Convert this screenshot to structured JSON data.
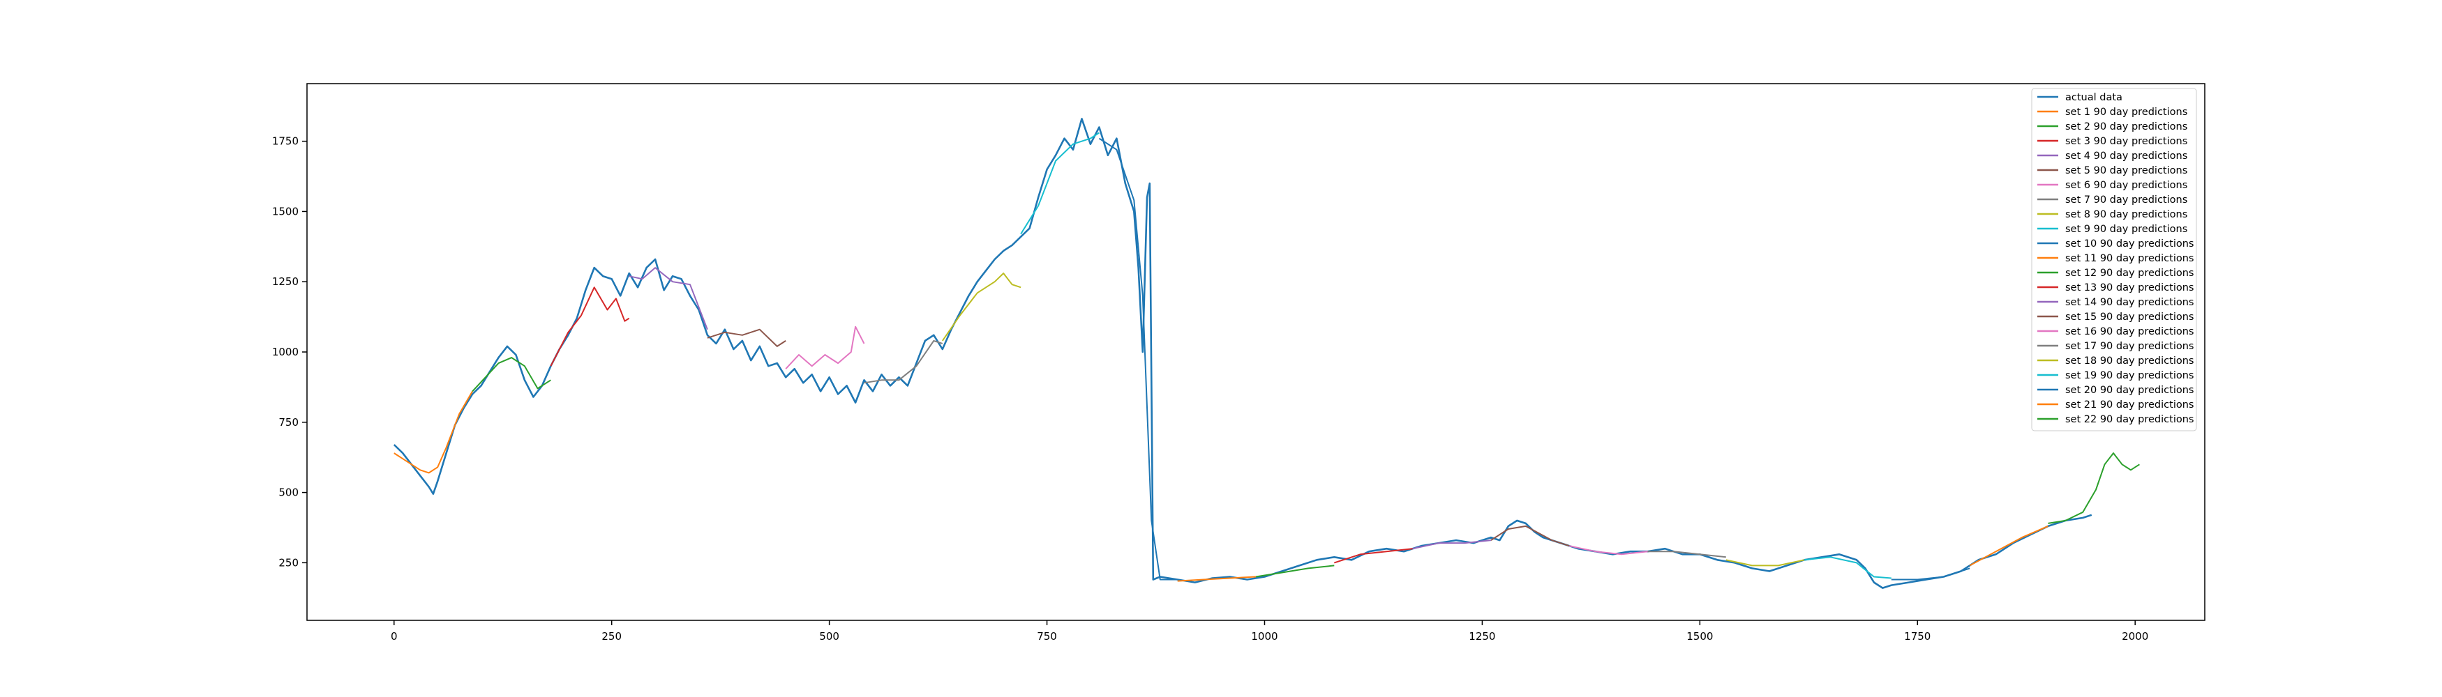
{
  "chart_data": {
    "type": "line",
    "title": "",
    "xlabel": "",
    "ylabel": "",
    "xlim": [
      -100,
      2080
    ],
    "ylim": [
      45,
      1955
    ],
    "x_ticks": [
      0,
      250,
      500,
      750,
      1000,
      1250,
      1500,
      1750,
      2000
    ],
    "y_ticks": [
      250,
      500,
      750,
      1000,
      1250,
      1500,
      1750
    ],
    "x_tick_labels": [
      "0",
      "250",
      "500",
      "750",
      "1000",
      "1250",
      "1500",
      "1750",
      "2000"
    ],
    "y_tick_labels": [
      "250",
      "500",
      "750",
      "1000",
      "1250",
      "1500",
      "1750"
    ],
    "grid": false,
    "legend_position": "top-right",
    "actual": {
      "name": "actual data",
      "color": "#1f77b4",
      "points": [
        [
          0,
          670
        ],
        [
          10,
          640
        ],
        [
          20,
          600
        ],
        [
          30,
          560
        ],
        [
          40,
          520
        ],
        [
          45,
          495
        ],
        [
          50,
          540
        ],
        [
          60,
          640
        ],
        [
          70,
          740
        ],
        [
          80,
          800
        ],
        [
          90,
          850
        ],
        [
          100,
          880
        ],
        [
          110,
          930
        ],
        [
          120,
          980
        ],
        [
          130,
          1020
        ],
        [
          140,
          990
        ],
        [
          150,
          900
        ],
        [
          160,
          840
        ],
        [
          170,
          880
        ],
        [
          180,
          950
        ],
        [
          190,
          1010
        ],
        [
          200,
          1060
        ],
        [
          210,
          1120
        ],
        [
          220,
          1220
        ],
        [
          230,
          1300
        ],
        [
          240,
          1270
        ],
        [
          250,
          1260
        ],
        [
          260,
          1200
        ],
        [
          270,
          1280
        ],
        [
          280,
          1230
        ],
        [
          290,
          1300
        ],
        [
          300,
          1330
        ],
        [
          310,
          1220
        ],
        [
          320,
          1270
        ],
        [
          330,
          1260
        ],
        [
          340,
          1200
        ],
        [
          350,
          1150
        ],
        [
          360,
          1060
        ],
        [
          370,
          1030
        ],
        [
          380,
          1080
        ],
        [
          390,
          1010
        ],
        [
          400,
          1040
        ],
        [
          410,
          970
        ],
        [
          420,
          1020
        ],
        [
          430,
          950
        ],
        [
          440,
          960
        ],
        [
          450,
          910
        ],
        [
          460,
          940
        ],
        [
          470,
          890
        ],
        [
          480,
          920
        ],
        [
          490,
          860
        ],
        [
          500,
          910
        ],
        [
          510,
          850
        ],
        [
          520,
          880
        ],
        [
          530,
          820
        ],
        [
          540,
          900
        ],
        [
          550,
          860
        ],
        [
          560,
          920
        ],
        [
          570,
          880
        ],
        [
          580,
          910
        ],
        [
          590,
          880
        ],
        [
          600,
          960
        ],
        [
          610,
          1040
        ],
        [
          620,
          1060
        ],
        [
          630,
          1010
        ],
        [
          640,
          1080
        ],
        [
          650,
          1140
        ],
        [
          660,
          1200
        ],
        [
          670,
          1250
        ],
        [
          680,
          1290
        ],
        [
          690,
          1330
        ],
        [
          700,
          1360
        ],
        [
          710,
          1380
        ],
        [
          720,
          1410
        ],
        [
          730,
          1440
        ],
        [
          740,
          1550
        ],
        [
          750,
          1650
        ],
        [
          760,
          1700
        ],
        [
          770,
          1760
        ],
        [
          780,
          1720
        ],
        [
          790,
          1830
        ],
        [
          800,
          1740
        ],
        [
          810,
          1800
        ],
        [
          820,
          1700
        ],
        [
          830,
          1760
        ],
        [
          840,
          1600
        ],
        [
          850,
          1500
        ],
        [
          855,
          1300
        ],
        [
          860,
          1000
        ],
        [
          865,
          1550
        ],
        [
          868,
          1600
        ],
        [
          872,
          190
        ],
        [
          880,
          200
        ],
        [
          900,
          190
        ],
        [
          920,
          180
        ],
        [
          940,
          195
        ],
        [
          960,
          200
        ],
        [
          980,
          190
        ],
        [
          1000,
          200
        ],
        [
          1020,
          220
        ],
        [
          1040,
          240
        ],
        [
          1060,
          260
        ],
        [
          1080,
          270
        ],
        [
          1100,
          260
        ],
        [
          1120,
          290
        ],
        [
          1140,
          300
        ],
        [
          1160,
          290
        ],
        [
          1180,
          310
        ],
        [
          1200,
          320
        ],
        [
          1220,
          330
        ],
        [
          1240,
          320
        ],
        [
          1260,
          340
        ],
        [
          1270,
          330
        ],
        [
          1280,
          380
        ],
        [
          1290,
          400
        ],
        [
          1300,
          390
        ],
        [
          1310,
          360
        ],
        [
          1320,
          340
        ],
        [
          1340,
          320
        ],
        [
          1360,
          300
        ],
        [
          1380,
          290
        ],
        [
          1400,
          280
        ],
        [
          1420,
          290
        ],
        [
          1440,
          290
        ],
        [
          1460,
          300
        ],
        [
          1480,
          280
        ],
        [
          1500,
          280
        ],
        [
          1520,
          260
        ],
        [
          1540,
          250
        ],
        [
          1560,
          230
        ],
        [
          1580,
          220
        ],
        [
          1600,
          240
        ],
        [
          1620,
          260
        ],
        [
          1640,
          270
        ],
        [
          1660,
          280
        ],
        [
          1680,
          260
        ],
        [
          1690,
          230
        ],
        [
          1700,
          180
        ],
        [
          1710,
          160
        ],
        [
          1720,
          170
        ],
        [
          1740,
          180
        ],
        [
          1760,
          190
        ],
        [
          1780,
          200
        ],
        [
          1800,
          220
        ],
        [
          1820,
          260
        ],
        [
          1840,
          280
        ],
        [
          1860,
          320
        ],
        [
          1880,
          350
        ],
        [
          1900,
          380
        ],
        [
          1920,
          400
        ],
        [
          1940,
          410
        ],
        [
          1950,
          420
        ]
      ]
    },
    "series": [
      {
        "name": "set 1 90 day predictions",
        "color": "#ff7f0e",
        "points": [
          [
            0,
            640
          ],
          [
            15,
            610
          ],
          [
            30,
            580
          ],
          [
            40,
            570
          ],
          [
            50,
            590
          ],
          [
            60,
            660
          ],
          [
            75,
            780
          ],
          [
            90,
            860
          ]
        ]
      },
      {
        "name": "set 2 90 day predictions",
        "color": "#2ca02c",
        "points": [
          [
            90,
            860
          ],
          [
            105,
            910
          ],
          [
            120,
            960
          ],
          [
            135,
            980
          ],
          [
            150,
            950
          ],
          [
            165,
            870
          ],
          [
            180,
            900
          ]
        ]
      },
      {
        "name": "set 3 90 day predictions",
        "color": "#d62728",
        "points": [
          [
            180,
            950
          ],
          [
            200,
            1070
          ],
          [
            215,
            1130
          ],
          [
            230,
            1230
          ],
          [
            245,
            1150
          ],
          [
            255,
            1190
          ],
          [
            265,
            1110
          ],
          [
            270,
            1120
          ]
        ]
      },
      {
        "name": "set 4 90 day predictions",
        "color": "#9467bd",
        "points": [
          [
            270,
            1270
          ],
          [
            285,
            1260
          ],
          [
            300,
            1300
          ],
          [
            320,
            1250
          ],
          [
            340,
            1240
          ],
          [
            360,
            1080
          ]
        ]
      },
      {
        "name": "set 5 90 day predictions",
        "color": "#8c564b",
        "points": [
          [
            360,
            1050
          ],
          [
            380,
            1070
          ],
          [
            400,
            1060
          ],
          [
            420,
            1080
          ],
          [
            440,
            1020
          ],
          [
            450,
            1040
          ]
        ]
      },
      {
        "name": "set 6 90 day predictions",
        "color": "#e377c2",
        "points": [
          [
            450,
            940
          ],
          [
            465,
            990
          ],
          [
            480,
            950
          ],
          [
            495,
            990
          ],
          [
            510,
            960
          ],
          [
            525,
            1000
          ],
          [
            530,
            1090
          ],
          [
            540,
            1030
          ]
        ]
      },
      {
        "name": "set 7 90 day predictions",
        "color": "#7f7f7f",
        "points": [
          [
            540,
            890
          ],
          [
            560,
            900
          ],
          [
            580,
            900
          ],
          [
            600,
            950
          ],
          [
            620,
            1040
          ],
          [
            630,
            1030
          ]
        ]
      },
      {
        "name": "set 8 90 day predictions",
        "color": "#bcbd22",
        "points": [
          [
            630,
            1040
          ],
          [
            650,
            1130
          ],
          [
            670,
            1210
          ],
          [
            690,
            1250
          ],
          [
            700,
            1280
          ],
          [
            710,
            1240
          ],
          [
            720,
            1230
          ]
        ]
      },
      {
        "name": "set 9 90 day predictions",
        "color": "#17becf",
        "points": [
          [
            720,
            1420
          ],
          [
            740,
            1520
          ],
          [
            760,
            1680
          ],
          [
            780,
            1740
          ],
          [
            800,
            1760
          ],
          [
            810,
            1780
          ]
        ]
      },
      {
        "name": "set 10 90 day predictions",
        "color": "#1f77b4",
        "points": [
          [
            810,
            1760
          ],
          [
            830,
            1720
          ],
          [
            850,
            1540
          ],
          [
            860,
            1200
          ],
          [
            870,
            400
          ],
          [
            880,
            190
          ],
          [
            900,
            190
          ]
        ]
      },
      {
        "name": "set 11 90 day predictions",
        "color": "#ff7f0e",
        "points": [
          [
            900,
            185
          ],
          [
            930,
            190
          ],
          [
            960,
            195
          ],
          [
            990,
            200
          ]
        ]
      },
      {
        "name": "set 12 90 day predictions",
        "color": "#2ca02c",
        "points": [
          [
            990,
            200
          ],
          [
            1020,
            215
          ],
          [
            1050,
            230
          ],
          [
            1080,
            240
          ]
        ]
      },
      {
        "name": "set 13 90 day predictions",
        "color": "#d62728",
        "points": [
          [
            1080,
            250
          ],
          [
            1110,
            280
          ],
          [
            1140,
            290
          ],
          [
            1170,
            300
          ]
        ]
      },
      {
        "name": "set 14 90 day predictions",
        "color": "#9467bd",
        "points": [
          [
            1170,
            300
          ],
          [
            1200,
            320
          ],
          [
            1230,
            320
          ],
          [
            1260,
            330
          ]
        ]
      },
      {
        "name": "set 15 90 day predictions",
        "color": "#8c564b",
        "points": [
          [
            1260,
            330
          ],
          [
            1280,
            370
          ],
          [
            1300,
            380
          ],
          [
            1330,
            330
          ],
          [
            1350,
            310
          ]
        ]
      },
      {
        "name": "set 16 90 day predictions",
        "color": "#e377c2",
        "points": [
          [
            1350,
            310
          ],
          [
            1380,
            290
          ],
          [
            1410,
            280
          ],
          [
            1440,
            290
          ]
        ]
      },
      {
        "name": "set 17 90 day predictions",
        "color": "#7f7f7f",
        "points": [
          [
            1440,
            290
          ],
          [
            1470,
            290
          ],
          [
            1500,
            280
          ],
          [
            1530,
            270
          ]
        ]
      },
      {
        "name": "set 18 90 day predictions",
        "color": "#bcbd22",
        "points": [
          [
            1530,
            260
          ],
          [
            1560,
            240
          ],
          [
            1590,
            240
          ],
          [
            1620,
            260
          ]
        ]
      },
      {
        "name": "set 19 90 day predictions",
        "color": "#17becf",
        "points": [
          [
            1620,
            260
          ],
          [
            1650,
            270
          ],
          [
            1680,
            250
          ],
          [
            1700,
            200
          ],
          [
            1720,
            195
          ]
        ]
      },
      {
        "name": "set 20 90 day predictions",
        "color": "#1f77b4",
        "points": [
          [
            1720,
            190
          ],
          [
            1750,
            190
          ],
          [
            1780,
            200
          ],
          [
            1810,
            230
          ]
        ]
      },
      {
        "name": "set 21 90 day predictions",
        "color": "#ff7f0e",
        "points": [
          [
            1810,
            240
          ],
          [
            1840,
            290
          ],
          [
            1870,
            340
          ],
          [
            1900,
            380
          ]
        ]
      },
      {
        "name": "set 22 90 day predictions",
        "color": "#2ca02c",
        "points": [
          [
            1900,
            390
          ],
          [
            1920,
            400
          ],
          [
            1940,
            430
          ],
          [
            1955,
            510
          ],
          [
            1965,
            600
          ],
          [
            1975,
            640
          ],
          [
            1985,
            600
          ],
          [
            1995,
            580
          ],
          [
            2005,
            600
          ]
        ]
      }
    ]
  }
}
